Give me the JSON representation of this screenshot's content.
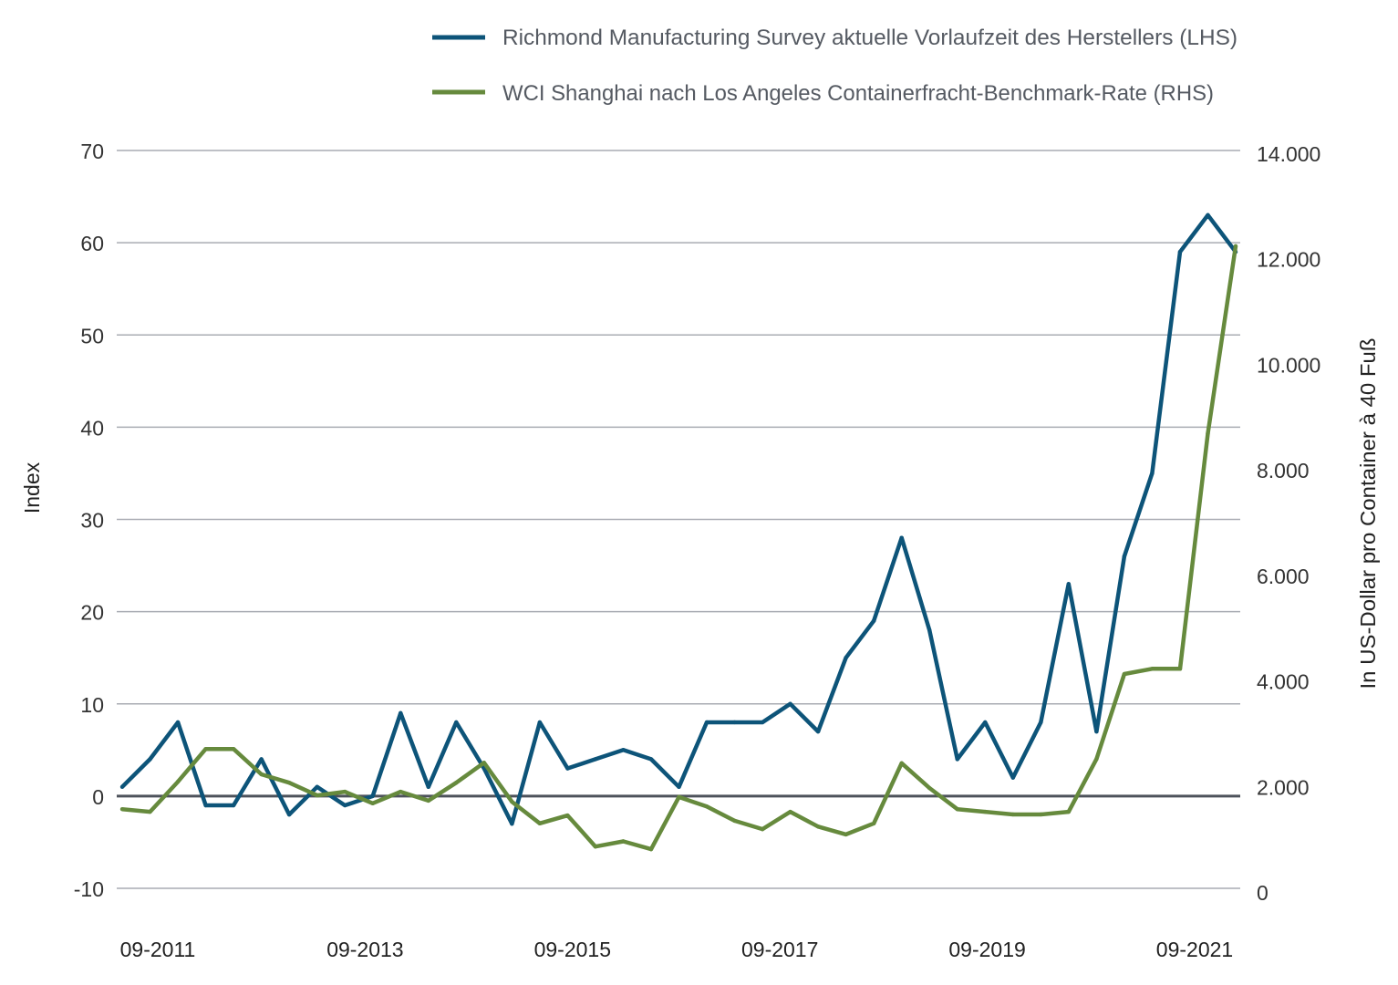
{
  "chart_data": {
    "type": "line",
    "title": "",
    "xlabel": "",
    "ylabel": "Index",
    "ylabel_right": "In US-Dollar pro Container à 40 Fuß",
    "ylim": [
      -10,
      70
    ],
    "yticks": [
      "-10",
      "0",
      "10",
      "20",
      "30",
      "40",
      "50",
      "60",
      "70"
    ],
    "ylim_right": [
      0,
      14000
    ],
    "yticks_right": [
      "0",
      "2.000",
      "4.000",
      "6.000",
      "8.000",
      "10.000",
      "12.000",
      "14.000"
    ],
    "xtick_labels": [
      "09-2011",
      "09-2013",
      "09-2015",
      "09-2017",
      "09-2019",
      "09-2021"
    ],
    "grid": true,
    "legend_position": "top",
    "series": [
      {
        "name": "Richmond Manufacturing Survey aktuelle Vorlaufzeit des Herstellers (LHS)",
        "axis": "left",
        "color": "#0d5479",
        "values": [
          1,
          4,
          8,
          -1,
          -1,
          4,
          -2,
          1,
          -1,
          0,
          9,
          1,
          8,
          3,
          -3,
          8,
          3,
          4,
          5,
          4,
          1,
          8,
          8,
          8,
          10,
          7,
          15,
          19,
          28,
          18,
          4,
          8,
          2,
          8,
          23,
          7,
          26,
          35,
          59,
          63,
          59
        ]
      },
      {
        "name": "WCI Shanghai nach Los Angeles Containerfracht-Benchmark-Rate (RHS)",
        "axis": "right",
        "color": "#668a3d",
        "values": [
          1570,
          1520,
          2090,
          2710,
          2710,
          2230,
          2070,
          1830,
          1900,
          1680,
          1900,
          1730,
          2070,
          2450,
          1710,
          1300,
          1450,
          860,
          960,
          810,
          1800,
          1620,
          1350,
          1190,
          1520,
          1240,
          1090,
          1300,
          2440,
          1970,
          1570,
          1520,
          1470,
          1470,
          1520,
          2520,
          4130,
          4230,
          4230,
          8690,
          12240
        ]
      }
    ]
  }
}
